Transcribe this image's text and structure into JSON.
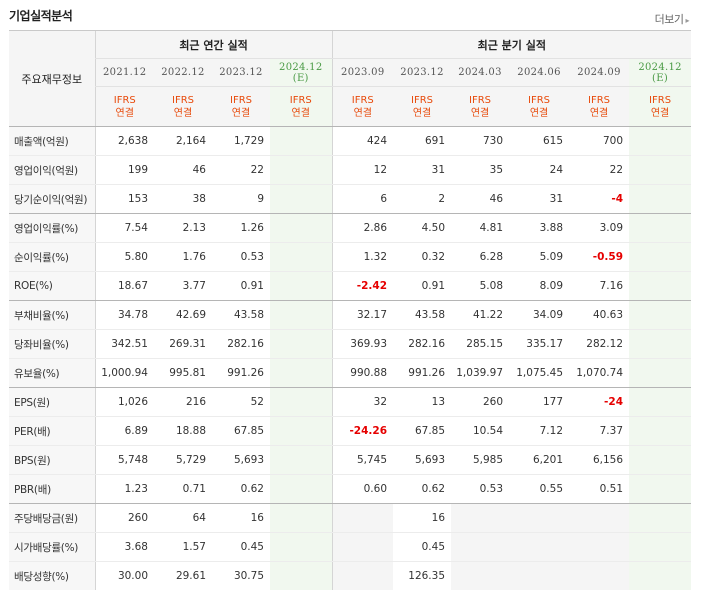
{
  "header": {
    "title": "기업실적분석",
    "more_label": "더보기"
  },
  "table": {
    "label_header": "주요재무정보",
    "group_annual": "최근 연간 실적",
    "group_quarter": "최근 분기 실적",
    "periods": [
      "2021.12",
      "2022.12",
      "2023.12",
      "2024.12",
      "2023.09",
      "2023.12",
      "2024.03",
      "2024.06",
      "2024.09",
      "2024.12"
    ],
    "estimate_mark": "(E)",
    "ifrs": "IFRS",
    "basis": "연결",
    "rows": [
      {
        "label": "매출액(억원)",
        "v": [
          "2,638",
          "2,164",
          "1,729",
          "",
          "424",
          "691",
          "730",
          "615",
          "700",
          ""
        ]
      },
      {
        "label": "영업이익(억원)",
        "v": [
          "199",
          "46",
          "22",
          "",
          "12",
          "31",
          "35",
          "24",
          "22",
          ""
        ]
      },
      {
        "label": "당기순이익(억원)",
        "v": [
          "153",
          "38",
          "9",
          "",
          "6",
          "2",
          "46",
          "31",
          "-4",
          ""
        ]
      },
      {
        "label": "영업이익률(%)",
        "v": [
          "7.54",
          "2.13",
          "1.26",
          "",
          "2.86",
          "4.50",
          "4.81",
          "3.88",
          "3.09",
          ""
        ]
      },
      {
        "label": "순이익률(%)",
        "v": [
          "5.80",
          "1.76",
          "0.53",
          "",
          "1.32",
          "0.32",
          "6.28",
          "5.09",
          "-0.59",
          ""
        ]
      },
      {
        "label": "ROE(%)",
        "v": [
          "18.67",
          "3.77",
          "0.91",
          "",
          "-2.42",
          "0.91",
          "5.08",
          "8.09",
          "7.16",
          ""
        ]
      },
      {
        "label": "부채비율(%)",
        "v": [
          "34.78",
          "42.69",
          "43.58",
          "",
          "32.17",
          "43.58",
          "41.22",
          "34.09",
          "40.63",
          ""
        ]
      },
      {
        "label": "당좌비율(%)",
        "v": [
          "342.51",
          "269.31",
          "282.16",
          "",
          "369.93",
          "282.16",
          "285.15",
          "335.17",
          "282.12",
          ""
        ]
      },
      {
        "label": "유보율(%)",
        "v": [
          "1,000.94",
          "995.81",
          "991.26",
          "",
          "990.88",
          "991.26",
          "1,039.97",
          "1,075.45",
          "1,070.74",
          ""
        ]
      },
      {
        "label": "EPS(원)",
        "v": [
          "1,026",
          "216",
          "52",
          "",
          "32",
          "13",
          "260",
          "177",
          "-24",
          ""
        ]
      },
      {
        "label": "PER(배)",
        "v": [
          "6.89",
          "18.88",
          "67.85",
          "",
          "-24.26",
          "67.85",
          "10.54",
          "7.12",
          "7.37",
          ""
        ]
      },
      {
        "label": "BPS(원)",
        "v": [
          "5,748",
          "5,729",
          "5,693",
          "",
          "5,745",
          "5,693",
          "5,985",
          "6,201",
          "6,156",
          ""
        ]
      },
      {
        "label": "PBR(배)",
        "v": [
          "1.23",
          "0.71",
          "0.62",
          "",
          "0.60",
          "0.62",
          "0.53",
          "0.55",
          "0.51",
          ""
        ]
      },
      {
        "label": "주당배당금(원)",
        "v": [
          "260",
          "64",
          "16",
          "",
          "",
          "16",
          "",
          "",
          "",
          ""
        ]
      },
      {
        "label": "시가배당률(%)",
        "v": [
          "3.68",
          "1.57",
          "0.45",
          "",
          "",
          "0.45",
          "",
          "",
          "",
          ""
        ]
      },
      {
        "label": "배당성향(%)",
        "v": [
          "30.00",
          "29.61",
          "30.75",
          "",
          "",
          "126.35",
          "",
          "",
          "",
          ""
        ]
      }
    ]
  },
  "colors": {
    "ifrs": "#e84b0c",
    "negative": "#e60000",
    "estimate_bg": "#f1f8ef",
    "estimate_text": "#4a9a45"
  }
}
